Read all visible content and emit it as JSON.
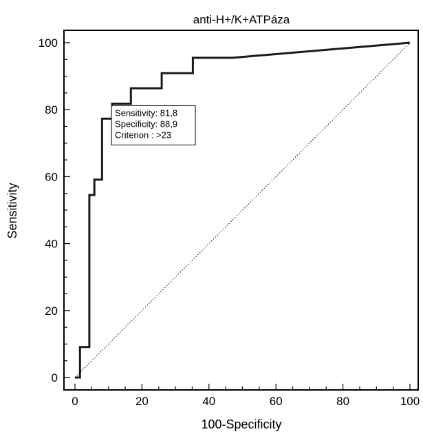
{
  "chart_data": {
    "type": "line",
    "title": "anti-H+/K+ATPáza",
    "xlabel": "100-Specificity",
    "ylabel": "Sensitivity",
    "xlim": [
      0,
      100
    ],
    "ylim": [
      0,
      100
    ],
    "xticks": [
      0,
      20,
      40,
      60,
      80,
      100
    ],
    "yticks": [
      0,
      20,
      40,
      60,
      80,
      100
    ],
    "grid": false,
    "series": [
      {
        "style": "solid",
        "color": "#1a1a1a",
        "points": [
          [
            0,
            0
          ],
          [
            1.5,
            0
          ],
          [
            1.5,
            9.1
          ],
          [
            4.3,
            9.1
          ],
          [
            4.3,
            54.5
          ],
          [
            5.8,
            54.5
          ],
          [
            5.8,
            59.1
          ],
          [
            8.1,
            59.1
          ],
          [
            8.1,
            77.3
          ],
          [
            11.1,
            77.3
          ],
          [
            11.1,
            81.8
          ],
          [
            16.7,
            81.8
          ],
          [
            16.7,
            86.4
          ],
          [
            25.9,
            86.4
          ],
          [
            25.9,
            90.9
          ],
          [
            35.2,
            90.9
          ],
          [
            35.2,
            95.5
          ],
          [
            47.0,
            95.5
          ],
          [
            100,
            100
          ]
        ]
      },
      {
        "style": "dotted",
        "color": "#000000",
        "points": [
          [
            0,
            0
          ],
          [
            100,
            100
          ]
        ]
      }
    ],
    "annotation": {
      "lines": [
        "Sensitivity: 81,8",
        "Specificity: 88,9",
        "Criterion : >23"
      ],
      "anchor": [
        11.1,
        81.8
      ]
    }
  }
}
